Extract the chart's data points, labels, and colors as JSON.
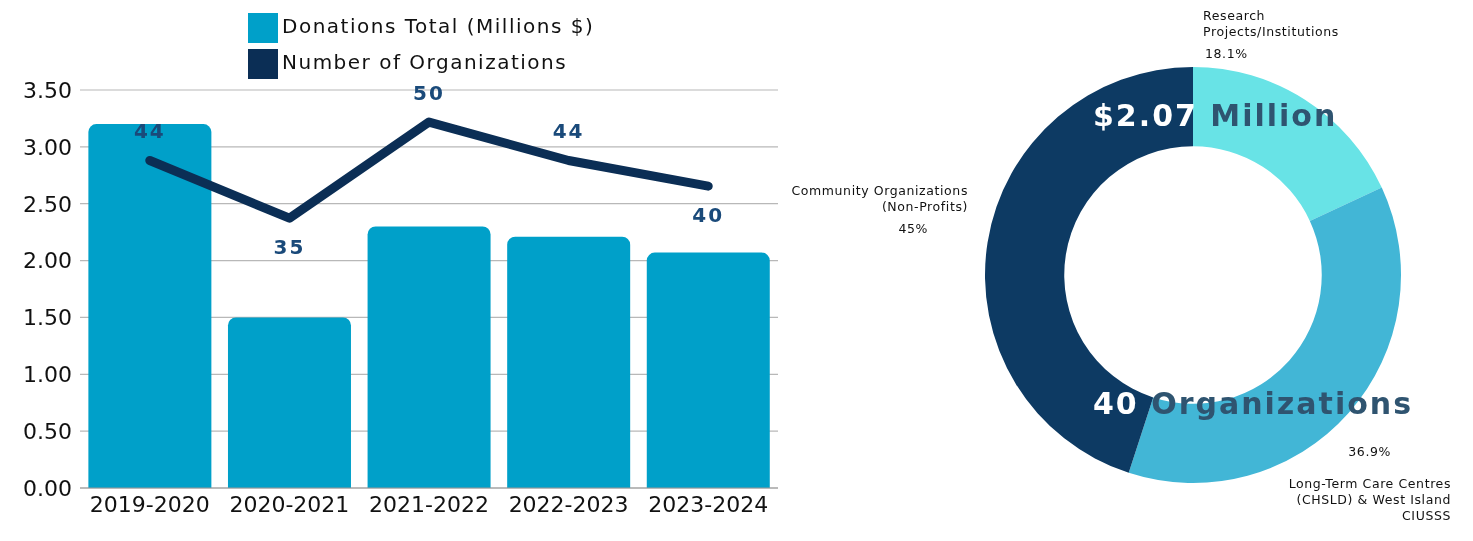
{
  "chart_data": [
    {
      "type": "bar",
      "categories": [
        "2019-2020",
        "2020-2021",
        "2021-2022",
        "2022-2023",
        "2023-2024"
      ],
      "series": [
        {
          "name": "Donations Total (Millions $)",
          "type": "bar",
          "color": "#00a0c9",
          "values": [
            3.2,
            1.5,
            2.3,
            2.21,
            2.07
          ]
        },
        {
          "name": "Number of Organizations",
          "type": "line",
          "axis": "y2",
          "color": "#0b2e55",
          "values": [
            44,
            35,
            50,
            44,
            40
          ],
          "data_labels": true
        }
      ],
      "ylim": [
        0,
        3.5
      ],
      "yticks": [
        {
          "value": 0,
          "label": "0.00"
        },
        {
          "value": 0.5,
          "label": "0.50"
        },
        {
          "value": 1,
          "label": "1.00"
        },
        {
          "value": 1.5,
          "label": "1.50"
        },
        {
          "value": 2,
          "label": "2.00"
        },
        {
          "value": 2.5,
          "label": "2.50"
        },
        {
          "value": 3,
          "label": "3.00"
        },
        {
          "value": 3.5,
          "label": "3.50"
        }
      ],
      "y2lim": [
        -7.1,
        55
      ],
      "grid": "y",
      "legend": "top",
      "marker": "none"
    },
    {
      "type": "donut",
      "categories": [
        "Research Projects/Institutions",
        "Long-Term Care Centres (CHSLD) & West Island CIUSSS",
        "Community Organizations (Non-Profits)"
      ],
      "values": [
        18.1,
        36.9,
        45
      ],
      "value_labels": [
        "18.1%",
        "36.9%",
        "45%"
      ],
      "colors": [
        "#68e3e6",
        "#42b6d6",
        "#0d3a63"
      ],
      "annotations": [
        "$2.07 Million",
        "40 Organizations"
      ]
    }
  ]
}
